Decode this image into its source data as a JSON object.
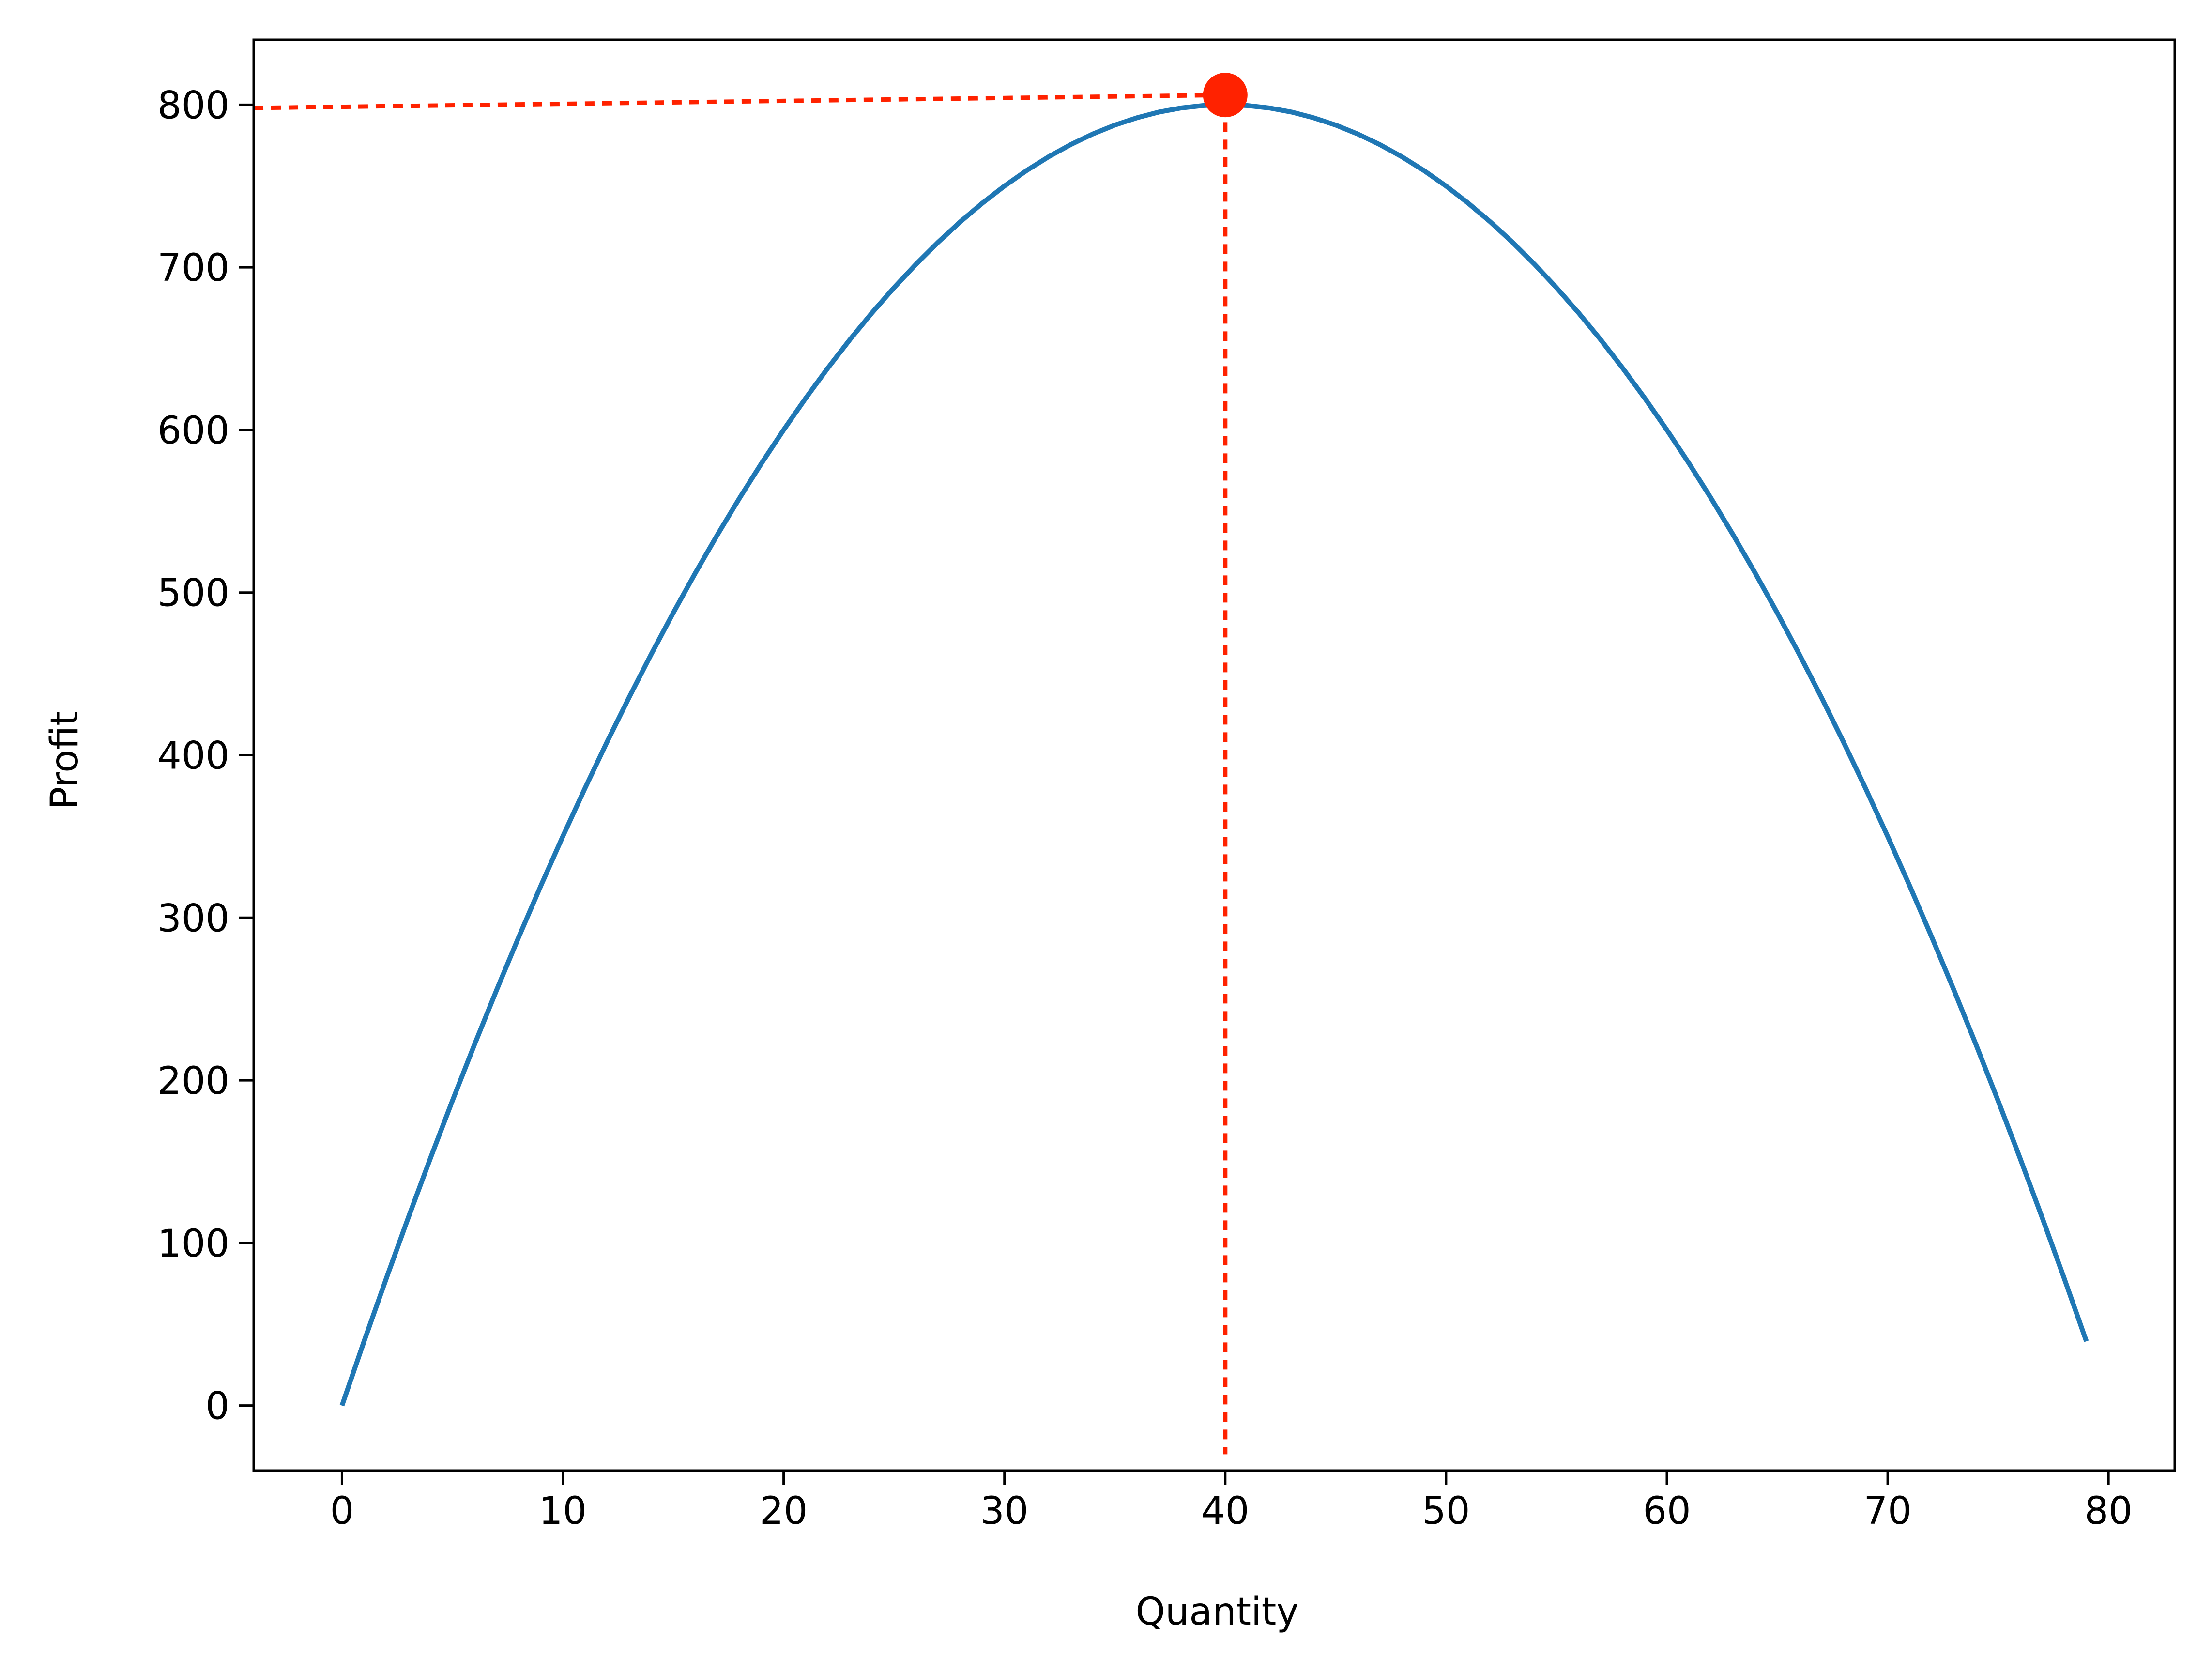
{
  "chart_data": {
    "type": "line",
    "title": "",
    "xlabel": "Quantity",
    "ylabel": "Profit",
    "xlim": [
      -4,
      83
    ],
    "ylim": [
      -40,
      840
    ],
    "grid": false,
    "legend": "none",
    "x_ticks": [
      0,
      10,
      20,
      30,
      40,
      50,
      60,
      70,
      80
    ],
    "y_ticks": [
      0,
      100,
      200,
      300,
      400,
      500,
      600,
      700,
      800
    ],
    "series": [
      {
        "function": "profit = 40*q - 0.5*q^2",
        "x_range": [
          0,
          79
        ],
        "x_step": 1,
        "color": "#1f77b4"
      }
    ],
    "maximum": {
      "x": 40,
      "y": 800,
      "color": "#ff2200",
      "guide_lines": {
        "style": "dotted",
        "horizontal_from": [
          -4,
          798
        ],
        "horizontal_to": [
          40,
          806
        ],
        "vertical_from": [
          40,
          800
        ],
        "vertical_to": [
          40,
          -30
        ]
      }
    },
    "colors": {
      "line": "#1f77b4",
      "marker": "#ff2200",
      "axes": "#000000",
      "background": "#ffffff"
    }
  }
}
